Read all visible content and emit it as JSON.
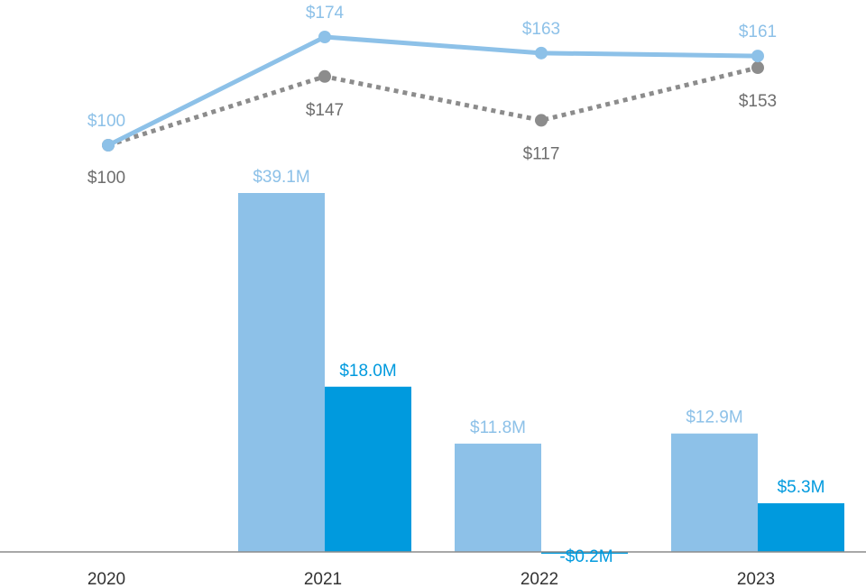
{
  "chart_data": {
    "type": "bar",
    "categories": [
      "2020",
      "2021",
      "2022",
      "2023"
    ],
    "bar_series": [
      {
        "values": [
          null,
          39.1,
          11.8,
          12.9
        ],
        "labels": [
          "",
          "$39.1M",
          "$11.8M",
          "$12.9M"
        ],
        "color": "#8dc1e8"
      },
      {
        "values": [
          null,
          18.0,
          -0.2,
          5.3
        ],
        "labels": [
          "",
          "$18.0M",
          "-$0.2M",
          "$5.3M"
        ],
        "color": "#009ade"
      }
    ],
    "line_series": [
      {
        "values": [
          100,
          174,
          163,
          161
        ],
        "labels": [
          "$100",
          "$174",
          "$163",
          "$161"
        ],
        "color": "#8dc1e8",
        "style": "solid"
      },
      {
        "values": [
          100,
          147,
          117,
          153
        ],
        "labels": [
          "$100",
          "$147",
          "$117",
          "$153"
        ],
        "color": "#8c8c8c",
        "style": "dotted"
      }
    ],
    "title": "",
    "xlabel": "",
    "ylabel": "",
    "bar_ylim": [
      -1,
      40
    ],
    "line_ylim": [
      90,
      180
    ],
    "grid": false,
    "legend": "none",
    "baseline_color": "#8c8c8c",
    "label_color_line_secondary": "#6e6e6e"
  }
}
